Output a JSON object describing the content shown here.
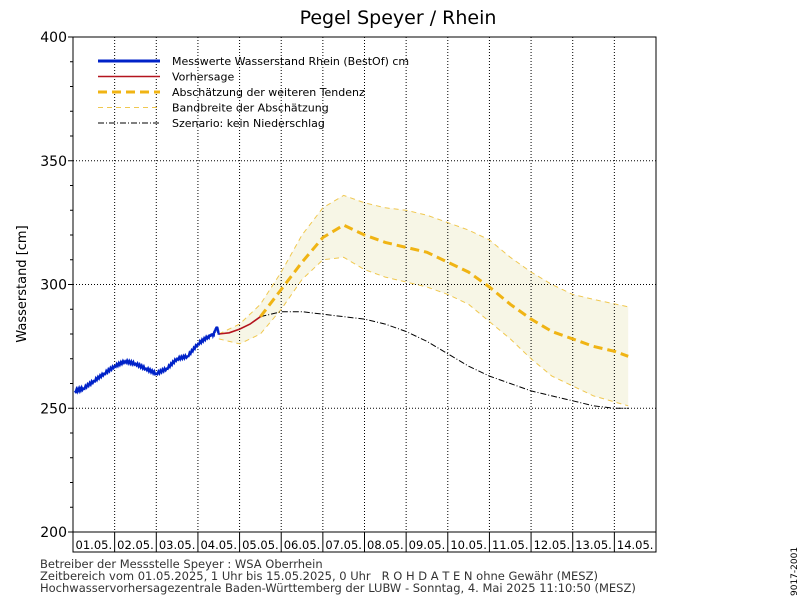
{
  "chart_data": {
    "type": "line",
    "title": "Pegel Speyer / Rhein",
    "ylabel": "Wasserstand [cm]",
    "xlabel": "",
    "ylim": [
      200,
      400
    ],
    "yticks": [
      200,
      250,
      300,
      350,
      400
    ],
    "xlim": [
      "01.05.2025 00:00",
      "15.05.2025 00:00"
    ],
    "categories": [
      "01.05.",
      "02.05.",
      "03.05.",
      "04.05.",
      "05.05.",
      "06.05.",
      "07.05.",
      "08.05.",
      "09.05.",
      "10.05.",
      "11.05.",
      "12.05.",
      "13.05.",
      "14.05."
    ],
    "grid": true,
    "legend_position": "top-left",
    "series": [
      {
        "name": "Messwerte Wasserstand Rhein (BestOf)   cm",
        "color": "#0022c8",
        "style": "solid-thick",
        "points": [
          [
            "01.05.2025 01:00",
            257
          ],
          [
            "01.05.2025 06:00",
            258
          ],
          [
            "01.05.2025 12:00",
            261
          ],
          [
            "01.05.2025 18:00",
            264
          ],
          [
            "02.05.2025 00:00",
            267
          ],
          [
            "02.05.2025 06:00",
            269
          ],
          [
            "02.05.2025 12:00",
            268
          ],
          [
            "02.05.2025 18:00",
            266
          ],
          [
            "03.05.2025 00:00",
            264
          ],
          [
            "03.05.2025 06:00",
            266
          ],
          [
            "03.05.2025 12:00",
            270
          ],
          [
            "03.05.2025 18:00",
            271
          ],
          [
            "04.05.2025 00:00",
            276
          ],
          [
            "04.05.2025 06:00",
            279
          ],
          [
            "04.05.2025 09:00",
            280
          ],
          [
            "04.05.2025 11:00",
            283
          ],
          [
            "04.05.2025 12:00",
            280
          ]
        ]
      },
      {
        "name": "Vorhersage",
        "color": "#b4141e",
        "style": "solid",
        "points": [
          [
            "04.05.2025 12:00",
            280
          ],
          [
            "04.05.2025 18:00",
            280.5
          ],
          [
            "05.05.2025 00:00",
            282
          ],
          [
            "05.05.2025 06:00",
            284
          ],
          [
            "05.05.2025 12:00",
            287
          ]
        ]
      },
      {
        "name": "Abschätzung der weiteren Tendenz",
        "color": "#f0b414",
        "style": "dashed-thick",
        "points": [
          [
            "05.05.2025 12:00",
            287
          ],
          [
            "06.05.2025 00:00",
            298
          ],
          [
            "06.05.2025 12:00",
            309
          ],
          [
            "07.05.2025 00:00",
            319
          ],
          [
            "07.05.2025 12:00",
            324
          ],
          [
            "08.05.2025 00:00",
            320
          ],
          [
            "08.05.2025 12:00",
            317
          ],
          [
            "09.05.2025 00:00",
            315
          ],
          [
            "09.05.2025 12:00",
            313
          ],
          [
            "10.05.2025 00:00",
            309
          ],
          [
            "10.05.2025 12:00",
            305
          ],
          [
            "11.05.2025 00:00",
            299
          ],
          [
            "11.05.2025 12:00",
            292
          ],
          [
            "12.05.2025 00:00",
            286
          ],
          [
            "12.05.2025 12:00",
            281
          ],
          [
            "13.05.2025 00:00",
            278
          ],
          [
            "13.05.2025 12:00",
            275
          ],
          [
            "14.05.2025 00:00",
            273
          ],
          [
            "14.05.2025 08:00",
            271
          ]
        ]
      },
      {
        "name": "Bandbreite der Abschätzung",
        "color": "#f0c850",
        "style": "dashed-thin",
        "upper": [
          [
            "04.05.2025 12:00",
            280
          ],
          [
            "05.05.2025 00:00",
            284
          ],
          [
            "05.05.2025 12:00",
            292
          ],
          [
            "06.05.2025 00:00",
            305
          ],
          [
            "06.05.2025 12:00",
            320
          ],
          [
            "07.05.2025 00:00",
            331
          ],
          [
            "07.05.2025 12:00",
            336
          ],
          [
            "08.05.2025 00:00",
            333
          ],
          [
            "08.05.2025 12:00",
            331
          ],
          [
            "09.05.2025 00:00",
            330
          ],
          [
            "09.05.2025 12:00",
            328
          ],
          [
            "10.05.2025 00:00",
            325
          ],
          [
            "10.05.2025 12:00",
            322
          ],
          [
            "11.05.2025 00:00",
            318
          ],
          [
            "11.05.2025 12:00",
            311
          ],
          [
            "12.05.2025 00:00",
            305
          ],
          [
            "12.05.2025 12:00",
            300
          ],
          [
            "13.05.2025 00:00",
            296
          ],
          [
            "13.05.2025 12:00",
            294
          ],
          [
            "14.05.2025 08:00",
            291
          ]
        ],
        "lower": [
          [
            "04.05.2025 12:00",
            278
          ],
          [
            "05.05.2025 00:00",
            276
          ],
          [
            "05.05.2025 12:00",
            280
          ],
          [
            "06.05.2025 00:00",
            290
          ],
          [
            "06.05.2025 12:00",
            302
          ],
          [
            "07.05.2025 00:00",
            310
          ],
          [
            "07.05.2025 12:00",
            311
          ],
          [
            "08.05.2025 00:00",
            306
          ],
          [
            "08.05.2025 12:00",
            303
          ],
          [
            "09.05.2025 00:00",
            301
          ],
          [
            "09.05.2025 12:00",
            299
          ],
          [
            "10.05.2025 00:00",
            296
          ],
          [
            "10.05.2025 12:00",
            292
          ],
          [
            "11.05.2025 00:00",
            285
          ],
          [
            "11.05.2025 12:00",
            278
          ],
          [
            "12.05.2025 00:00",
            270
          ],
          [
            "12.05.2025 12:00",
            263
          ],
          [
            "13.05.2025 00:00",
            259
          ],
          [
            "13.05.2025 12:00",
            255
          ],
          [
            "14.05.2025 08:00",
            251
          ]
        ]
      },
      {
        "name": "Szenario: kein Niederschlag",
        "color": "#000000",
        "style": "dashdot",
        "points": [
          [
            "05.05.2025 12:00",
            287
          ],
          [
            "06.05.2025 00:00",
            289
          ],
          [
            "06.05.2025 12:00",
            289
          ],
          [
            "07.05.2025 00:00",
            288
          ],
          [
            "07.05.2025 12:00",
            287
          ],
          [
            "08.05.2025 00:00",
            286
          ],
          [
            "08.05.2025 12:00",
            284
          ],
          [
            "09.05.2025 00:00",
            281
          ],
          [
            "09.05.2025 12:00",
            277
          ],
          [
            "10.05.2025 00:00",
            272
          ],
          [
            "10.05.2025 12:00",
            267
          ],
          [
            "11.05.2025 00:00",
            263
          ],
          [
            "11.05.2025 12:00",
            260
          ],
          [
            "12.05.2025 00:00",
            257
          ],
          [
            "12.05.2025 12:00",
            255
          ],
          [
            "13.05.2025 00:00",
            253
          ],
          [
            "13.05.2025 12:00",
            251
          ],
          [
            "14.05.2025 00:00",
            250
          ],
          [
            "14.05.2025 08:00",
            250
          ]
        ]
      }
    ]
  },
  "colors": {
    "band_fill": "#f7f6e6",
    "grid": "#000000",
    "frame": "#000000"
  },
  "footer": {
    "line1": "Betreiber der Messstelle Speyer : WSA Oberrhein",
    "line2": "Zeitbereich vom 01.05.2025, 1 Uhr bis 15.05.2025, 0 Uhr   R O H D A T E N ohne Gewähr (MESZ)",
    "line3": "Hochwasservorhersagezentrale Baden-Württemberg der LUBW - Sonntag, 4. Mai 2025 11:10:50 (MESZ)"
  },
  "side_code": "9017-2001"
}
